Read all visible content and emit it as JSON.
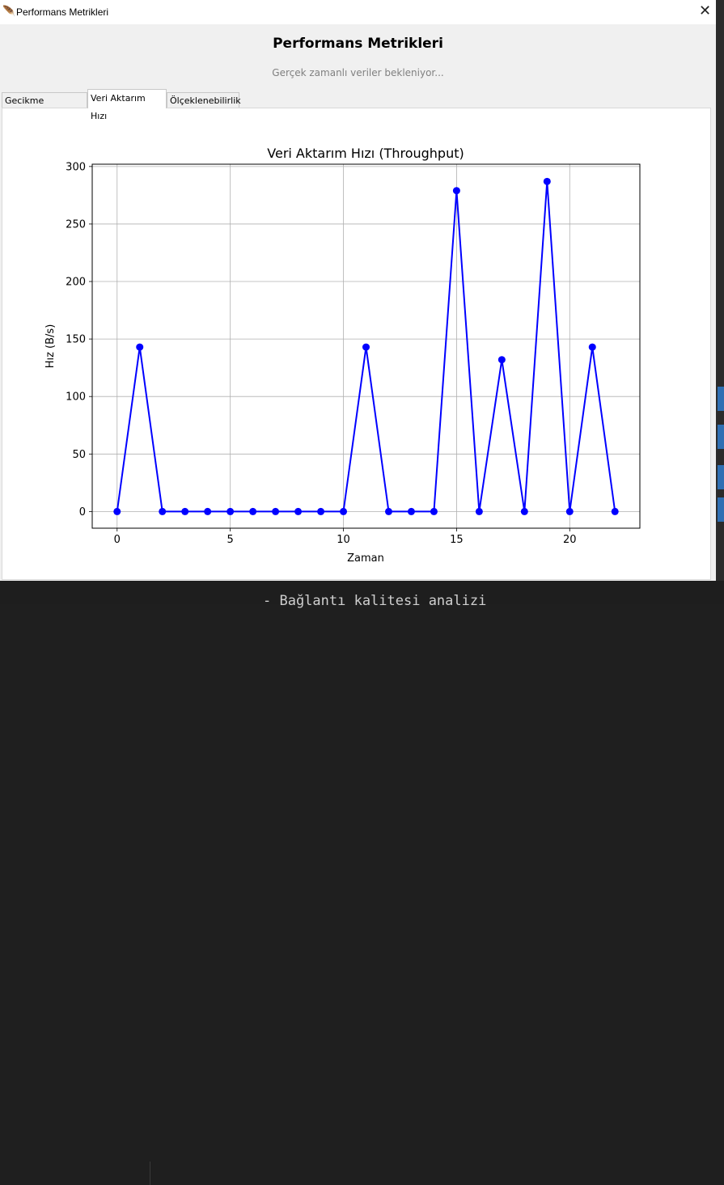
{
  "window": {
    "title": "Performans Metrikleri",
    "close_icon": "close-icon"
  },
  "header": {
    "title": "Performans Metrikleri",
    "subtitle": "Gerçek zamanlı veriler bekleniyor..."
  },
  "tabs": [
    {
      "label": "Gecikme (Latency)",
      "active": false
    },
    {
      "label": "Veri Aktarım Hızı",
      "active": true
    },
    {
      "label": "Ölçeklenebilirlik",
      "active": false
    }
  ],
  "background_text": "- Bağlantı kalitesi analizi",
  "chart_data": {
    "type": "line",
    "title": "Veri Aktarım Hızı (Throughput)",
    "xlabel": "Zaman",
    "ylabel": "Hız (B/s)",
    "xlim": [
      -1.1,
      23.1
    ],
    "ylim": [
      -14.5,
      302
    ],
    "xticks": [
      0,
      5,
      10,
      15,
      20
    ],
    "yticks": [
      0,
      50,
      100,
      150,
      200,
      250,
      300
    ],
    "grid": true,
    "color": "#0000ff",
    "marker": "circle",
    "x": [
      0,
      1,
      2,
      3,
      4,
      5,
      6,
      7,
      8,
      9,
      10,
      11,
      12,
      13,
      14,
      15,
      16,
      17,
      18,
      19,
      20,
      21,
      22
    ],
    "values": [
      0,
      143,
      0,
      0,
      0,
      0,
      0,
      0,
      0,
      0,
      0,
      143,
      0,
      0,
      0,
      279,
      0,
      132,
      0,
      287,
      0,
      143,
      0
    ]
  }
}
